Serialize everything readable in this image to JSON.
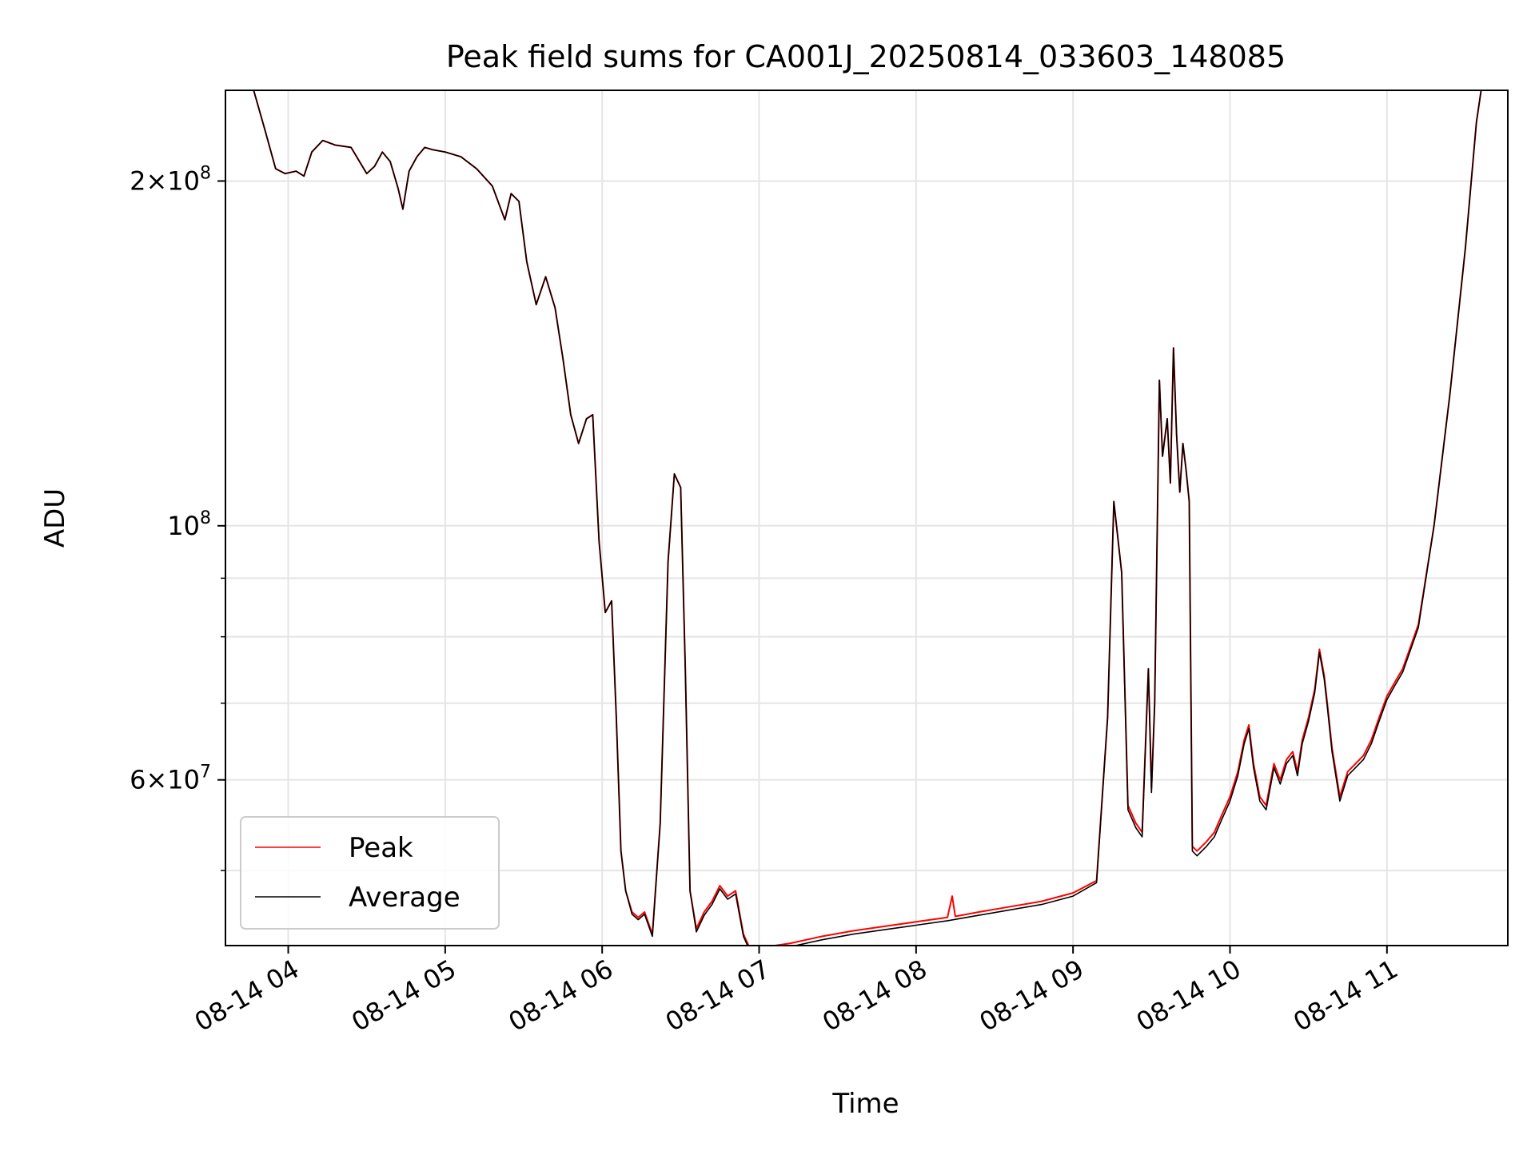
{
  "chart_data": {
    "type": "line",
    "title": "Peak field sums for CA001J_20250814_033603_148085",
    "xlabel": "Time",
    "ylabel": "ADU",
    "yscale": "log",
    "xlim": [
      "08-14 03:36",
      "08-14 11:46"
    ],
    "ylim": [
      43000000,
      240000000
    ],
    "grid": true,
    "legend_position": "lower-left",
    "x_ticks": [
      "08-14 04",
      "08-14 05",
      "08-14 06",
      "08-14 07",
      "08-14 08",
      "08-14 09",
      "08-14 10",
      "08-14 11"
    ],
    "x_tick_hours": [
      4,
      5,
      6,
      7,
      8,
      9,
      10,
      11
    ],
    "y_ticks_labeled": [
      {
        "value": 200000000,
        "mant": "2",
        "exp": "8"
      },
      {
        "value": 100000000,
        "mant": "",
        "exp": "8"
      },
      {
        "value": 60000000,
        "mant": "6",
        "exp": "7"
      }
    ],
    "y_minor_gridlines": [
      50000000,
      70000000,
      80000000,
      90000000
    ],
    "series": [
      {
        "name": "Peak",
        "color": "#ff0000",
        "x_hours": [
          3.78,
          3.85,
          3.92,
          3.98,
          4.05,
          4.1,
          4.15,
          4.22,
          4.3,
          4.4,
          4.5,
          4.55,
          4.6,
          4.65,
          4.7,
          4.73,
          4.77,
          4.82,
          4.87,
          4.92,
          5.0,
          5.1,
          5.2,
          5.3,
          5.38,
          5.42,
          5.47,
          5.52,
          5.58,
          5.64,
          5.7,
          5.75,
          5.8,
          5.85,
          5.9,
          5.94,
          5.98,
          6.02,
          6.06,
          6.09,
          6.12,
          6.15,
          6.19,
          6.23,
          6.27,
          6.32,
          6.37,
          6.42,
          6.46,
          6.5,
          6.53,
          6.56,
          6.6,
          6.65,
          6.7,
          6.75,
          6.8,
          6.85,
          6.9,
          6.95,
          7.0,
          7.2,
          7.4,
          7.6,
          7.8,
          8.0,
          8.2,
          8.23,
          8.25,
          8.4,
          8.6,
          8.8,
          9.0,
          9.15,
          9.22,
          9.26,
          9.31,
          9.35,
          9.4,
          9.44,
          9.48,
          9.5,
          9.52,
          9.55,
          9.57,
          9.6,
          9.62,
          9.64,
          9.66,
          9.68,
          9.7,
          9.72,
          9.74,
          9.76,
          9.79,
          9.85,
          9.9,
          9.95,
          10.0,
          10.05,
          10.09,
          10.12,
          10.15,
          10.19,
          10.23,
          10.28,
          10.32,
          10.36,
          10.4,
          10.43,
          10.46,
          10.5,
          10.54,
          10.57,
          10.6,
          10.62,
          10.65,
          10.7,
          10.75,
          10.8,
          10.85,
          10.9,
          10.95,
          11.0,
          11.05,
          11.1,
          11.2,
          11.3,
          11.4,
          11.5,
          11.57,
          11.6
        ],
        "values": [
          240000000,
          222000000,
          205000000,
          203000000,
          204000000,
          202000000,
          212000000,
          217000000,
          215000000,
          214000000,
          203000000,
          206000000,
          212000000,
          208000000,
          197000000,
          189000000,
          204000000,
          210000000,
          214000000,
          213000000,
          212000000,
          210000000,
          205000000,
          198000000,
          185000000,
          195000000,
          192000000,
          170000000,
          156000000,
          165000000,
          155000000,
          140000000,
          125000000,
          118000000,
          124000000,
          125000000,
          97000000,
          84000000,
          86000000,
          68000000,
          52000000,
          48000000,
          46000000,
          45500000,
          46000000,
          44000000,
          55000000,
          93000000,
          111000000,
          108000000,
          75000000,
          48000000,
          44500000,
          46000000,
          47000000,
          48500000,
          47500000,
          48000000,
          44000000,
          42500000,
          42800000,
          43200000,
          43800000,
          44300000,
          44700000,
          45100000,
          45500000,
          47500000,
          45600000,
          46000000,
          46500000,
          47000000,
          47800000,
          49000000,
          68000000,
          105000000,
          91000000,
          57000000,
          55000000,
          54000000,
          75000000,
          59000000,
          70000000,
          134000000,
          115000000,
          124000000,
          109000000,
          143000000,
          120000000,
          107000000,
          118000000,
          112000000,
          105000000,
          52500000,
          52000000,
          53000000,
          54000000,
          56000000,
          58000000,
          61000000,
          65000000,
          67000000,
          62000000,
          58000000,
          57000000,
          62000000,
          60000000,
          62500000,
          63500000,
          61000000,
          65000000,
          68000000,
          72000000,
          78000000,
          74000000,
          70000000,
          64000000,
          58000000,
          61000000,
          62000000,
          63000000,
          65000000,
          68000000,
          71000000,
          73000000,
          75000000,
          82000000,
          100000000,
          130000000,
          175000000,
          225000000,
          240000000
        ]
      },
      {
        "name": "Average",
        "color": "#000000",
        "x_hours": [
          3.78,
          3.85,
          3.92,
          3.98,
          4.05,
          4.1,
          4.15,
          4.22,
          4.3,
          4.4,
          4.5,
          4.55,
          4.6,
          4.65,
          4.7,
          4.73,
          4.77,
          4.82,
          4.87,
          4.92,
          5.0,
          5.1,
          5.2,
          5.3,
          5.38,
          5.42,
          5.47,
          5.52,
          5.58,
          5.64,
          5.7,
          5.75,
          5.8,
          5.85,
          5.9,
          5.94,
          5.98,
          6.02,
          6.06,
          6.09,
          6.12,
          6.15,
          6.19,
          6.23,
          6.27,
          6.32,
          6.37,
          6.42,
          6.46,
          6.5,
          6.53,
          6.56,
          6.6,
          6.65,
          6.7,
          6.75,
          6.8,
          6.85,
          6.9,
          6.95,
          7.0,
          7.2,
          7.4,
          7.6,
          7.8,
          8.0,
          8.2,
          8.4,
          8.6,
          8.8,
          9.0,
          9.15,
          9.22,
          9.26,
          9.31,
          9.35,
          9.4,
          9.44,
          9.48,
          9.5,
          9.52,
          9.55,
          9.57,
          9.6,
          9.62,
          9.64,
          9.66,
          9.68,
          9.7,
          9.72,
          9.74,
          9.76,
          9.79,
          9.85,
          9.9,
          9.95,
          10.0,
          10.05,
          10.09,
          10.12,
          10.15,
          10.19,
          10.23,
          10.28,
          10.32,
          10.36,
          10.4,
          10.43,
          10.46,
          10.5,
          10.54,
          10.57,
          10.6,
          10.62,
          10.65,
          10.7,
          10.75,
          10.8,
          10.85,
          10.9,
          10.95,
          11.0,
          11.05,
          11.1,
          11.2,
          11.3,
          11.4,
          11.5,
          11.57,
          11.6
        ],
        "values": [
          240000000,
          222000000,
          205000000,
          203000000,
          204000000,
          202000000,
          212000000,
          217000000,
          215000000,
          214000000,
          203000000,
          206000000,
          212000000,
          208000000,
          197000000,
          189000000,
          204000000,
          210000000,
          214000000,
          213000000,
          212000000,
          210000000,
          205000000,
          198000000,
          185000000,
          195000000,
          192000000,
          170000000,
          156000000,
          165000000,
          155000000,
          140000000,
          125000000,
          118000000,
          124000000,
          125000000,
          97000000,
          84000000,
          86000000,
          68000000,
          52000000,
          48000000,
          45800000,
          45300000,
          45800000,
          43800000,
          55000000,
          93000000,
          111000000,
          108000000,
          75000000,
          48000000,
          44200000,
          45700000,
          46700000,
          48200000,
          47200000,
          47700000,
          43800000,
          42300000,
          42500000,
          42900000,
          43500000,
          44000000,
          44400000,
          44800000,
          45200000,
          45700000,
          46200000,
          46700000,
          47500000,
          48800000,
          68000000,
          105000000,
          91000000,
          56500000,
          54500000,
          53500000,
          75000000,
          58500000,
          70000000,
          134000000,
          115000000,
          124000000,
          109000000,
          143000000,
          120000000,
          107000000,
          118000000,
          112000000,
          105000000,
          52000000,
          51500000,
          52500000,
          53500000,
          55500000,
          57500000,
          60500000,
          64500000,
          66500000,
          61500000,
          57500000,
          56500000,
          61500000,
          59500000,
          62000000,
          63000000,
          60500000,
          64500000,
          67500000,
          71500000,
          77500000,
          73500000,
          69500000,
          63500000,
          57500000,
          60500000,
          61500000,
          62500000,
          64500000,
          67500000,
          70500000,
          72500000,
          74500000,
          81500000,
          100000000,
          130000000,
          175000000,
          225000000,
          240000000
        ]
      }
    ]
  }
}
